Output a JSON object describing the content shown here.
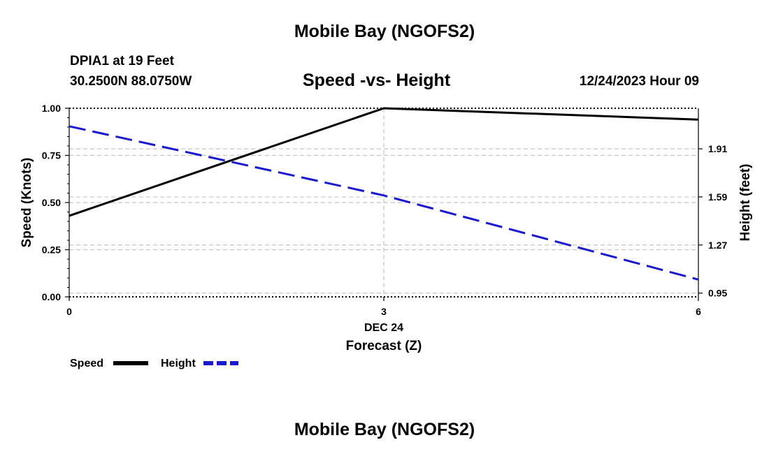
{
  "header": {
    "title": "Mobile Bay (NGOFS2)",
    "station": "DPIA1 at 19 Feet",
    "coords": "30.2500N  88.0750W",
    "chart_title": "Speed -vs- Height",
    "date": "12/24/2023 Hour 09"
  },
  "footer": {
    "title": "Mobile Bay (NGOFS2)"
  },
  "chart_data": {
    "type": "line",
    "title": "Speed -vs- Height",
    "xlabel": "Forecast (Z)",
    "xsublabel": "DEC 24",
    "x_ticks": [
      "0",
      "3",
      "6"
    ],
    "xlim": [
      0,
      6
    ],
    "ylabel_left": "Speed (Knots)",
    "ylabel_right": "Height (feet)",
    "ylim_left": [
      0,
      1
    ],
    "ylim_right": [
      0.925,
      2.18
    ],
    "left_ticks": [
      "0.00",
      "0.25",
      "0.50",
      "0.75",
      "1.00"
    ],
    "right_ticks": [
      "0.95",
      "1.27",
      "1.59",
      "1.91"
    ],
    "grid": true,
    "series": [
      {
        "name": "Speed",
        "axis": "left",
        "color": "#000000",
        "dash": "solid",
        "x": [
          0,
          3,
          6
        ],
        "values": [
          0.43,
          1.0,
          0.94
        ]
      },
      {
        "name": "Height",
        "axis": "right",
        "color": "#1a1acc",
        "dash": "dashed",
        "x": [
          0,
          3,
          6
        ],
        "values": [
          2.06,
          1.6,
          1.04
        ]
      }
    ],
    "legend": [
      "Speed",
      "Height"
    ],
    "legend_position": "bottom-left"
  }
}
